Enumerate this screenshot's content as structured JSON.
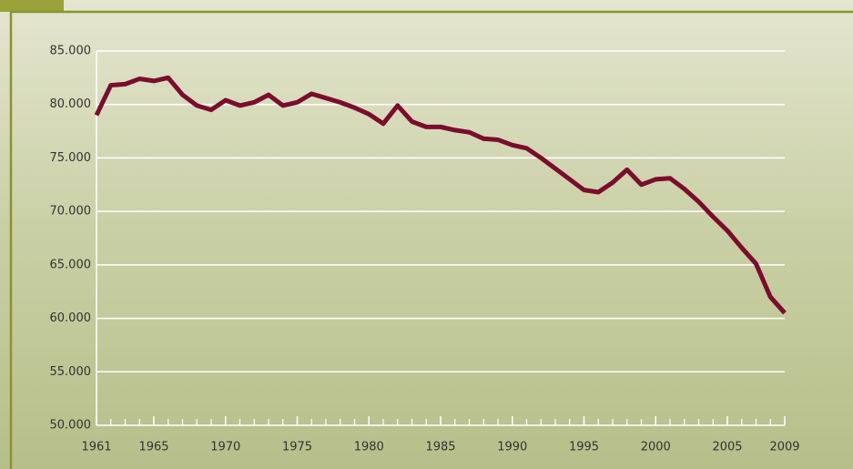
{
  "chart_data": {
    "type": "line",
    "x": [
      1961,
      1962,
      1963,
      1964,
      1965,
      1966,
      1967,
      1968,
      1969,
      1970,
      1971,
      1972,
      1973,
      1974,
      1975,
      1976,
      1977,
      1978,
      1979,
      1980,
      1981,
      1982,
      1983,
      1984,
      1985,
      1986,
      1987,
      1988,
      1989,
      1990,
      1991,
      1992,
      1993,
      1994,
      1995,
      1996,
      1997,
      1998,
      1999,
      2000,
      2001,
      2002,
      2003,
      2004,
      2005,
      2006,
      2007,
      2008,
      2009
    ],
    "series": [
      {
        "color": "#7a0d2e",
        "values": [
          79000,
          81800,
          81900,
          82400,
          82200,
          82500,
          80900,
          79900,
          79500,
          80400,
          79900,
          80200,
          80900,
          79900,
          80200,
          81000,
          80600,
          80200,
          79700,
          79100,
          78200,
          79900,
          78400,
          77900,
          77900,
          77600,
          77400,
          76800,
          76700,
          76200,
          75900,
          75000,
          74000,
          73000,
          72000,
          71800,
          72700,
          73900,
          72500,
          73000,
          73100,
          72100,
          70900,
          69500,
          68200,
          66600,
          65100,
          62000,
          60500
        ]
      }
    ],
    "xlim": [
      1961,
      2009
    ],
    "xticks": [
      1961,
      1965,
      1970,
      1975,
      1980,
      1985,
      1990,
      1995,
      2000,
      2005,
      2009
    ],
    "ylim": [
      50000,
      85000
    ],
    "yticks": [
      {
        "value": 50000,
        "label": "50.000"
      },
      {
        "value": 55000,
        "label": "55.000"
      },
      {
        "value": 60000,
        "label": "60.000"
      },
      {
        "value": 65000,
        "label": "65.000"
      },
      {
        "value": 70000,
        "label": "70.000"
      },
      {
        "value": 75000,
        "label": "75.000"
      },
      {
        "value": 80000,
        "label": "80.000"
      },
      {
        "value": 85000,
        "label": "85.000"
      }
    ],
    "grid": true
  }
}
